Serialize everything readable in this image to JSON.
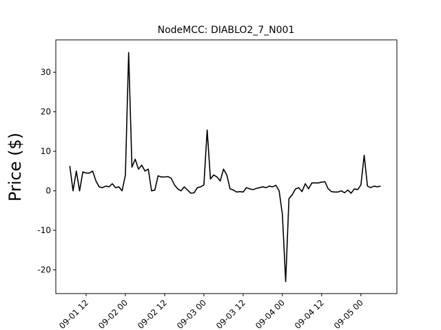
{
  "chart_data": {
    "type": "line",
    "title": "NodeMCC: DIABLO2_7_N001",
    "y_label": "Price ($)",
    "x": [
      "09-01 07:00",
      "09-01 08:00",
      "09-01 09:00",
      "09-01 10:00",
      "09-01 11:00",
      "09-01 12:00",
      "09-01 13:00",
      "09-01 14:00",
      "09-01 15:00",
      "09-01 16:00",
      "09-01 17:00",
      "09-01 18:00",
      "09-01 19:00",
      "09-01 20:00",
      "09-01 21:00",
      "09-01 22:00",
      "09-01 23:00",
      "09-02 00:00",
      "09-02 01:00",
      "09-02 02:00",
      "09-02 03:00",
      "09-02 04:00",
      "09-02 05:00",
      "09-02 06:00",
      "09-02 07:00",
      "09-02 08:00",
      "09-02 09:00",
      "09-02 10:00",
      "09-02 11:00",
      "09-02 12:00",
      "09-02 13:00",
      "09-02 14:00",
      "09-02 15:00",
      "09-02 16:00",
      "09-02 17:00",
      "09-02 18:00",
      "09-02 19:00",
      "09-02 20:00",
      "09-02 21:00",
      "09-02 22:00",
      "09-02 23:00",
      "09-03 00:00",
      "09-03 01:00",
      "09-03 02:00",
      "09-03 03:00",
      "09-03 04:00",
      "09-03 05:00",
      "09-03 06:00",
      "09-03 07:00",
      "09-03 08:00",
      "09-03 09:00",
      "09-03 10:00",
      "09-03 11:00",
      "09-03 12:00",
      "09-03 13:00",
      "09-03 14:00",
      "09-03 15:00",
      "09-03 16:00",
      "09-03 17:00",
      "09-03 18:00",
      "09-03 19:00",
      "09-03 20:00",
      "09-03 21:00",
      "09-03 22:00",
      "09-03 23:00",
      "09-04 00:00",
      "09-04 01:00",
      "09-04 02:00",
      "09-04 03:00",
      "09-04 04:00",
      "09-04 05:00",
      "09-04 06:00",
      "09-04 07:00",
      "09-04 08:00",
      "09-04 09:00",
      "09-04 10:00",
      "09-04 11:00",
      "09-04 12:00",
      "09-04 13:00",
      "09-04 14:00",
      "09-04 15:00",
      "09-04 16:00",
      "09-04 17:00",
      "09-04 18:00",
      "09-04 19:00",
      "09-04 20:00",
      "09-04 21:00",
      "09-04 22:00",
      "09-04 23:00",
      "09-05 00:00",
      "09-05 01:00",
      "09-05 02:00",
      "09-05 03:00",
      "09-05 04:00",
      "09-05 05:00",
      "09-05 06:00"
    ],
    "series": [
      {
        "color": "#000000",
        "values": [
          6.3,
          0,
          5,
          0,
          4.8,
          4.5,
          4.5,
          5.0,
          2.5,
          1,
          0.8,
          1.2,
          1.0,
          1.8,
          0.8,
          1.0,
          0,
          4,
          35,
          6,
          8,
          5.5,
          6.5,
          5,
          5.5,
          0,
          0.2,
          3.8,
          3.5,
          3.5,
          3.6,
          3.2,
          1.5,
          0.5,
          0,
          1,
          0.2,
          -0.6,
          -0.5,
          0.8,
          1,
          1.5,
          15.4,
          3,
          4,
          3.5,
          2.5,
          5.5,
          4,
          0.5,
          0.2,
          -0.3,
          -0.2,
          -0.3,
          0.8,
          0.5,
          0.3,
          0.6,
          0.8,
          1,
          0.8,
          1.2,
          1.0,
          1.4,
          0,
          -6,
          -23,
          -2,
          -1,
          0.5,
          0.8,
          -0.2,
          1.8,
          0.5,
          2,
          2,
          2,
          2.2,
          2.3,
          0.5,
          -0.2,
          -0.3,
          -0.3,
          0,
          -0.5,
          0.2,
          -0.6,
          0.5,
          0.3,
          1.5,
          9,
          1.2,
          0.8,
          1.2,
          1.0,
          1.2
        ]
      }
    ],
    "xlim": [
      "09-01 02:44",
      "09-05 11:00"
    ],
    "xticks": [
      {
        "value": "09-01 12:00",
        "label": "09-01 12"
      },
      {
        "value": "09-02 00:00",
        "label": "09-02 00"
      },
      {
        "value": "09-02 12:00",
        "label": "09-02 12"
      },
      {
        "value": "09-03 00:00",
        "label": "09-03 00"
      },
      {
        "value": "09-03 12:00",
        "label": "09-03 12"
      },
      {
        "value": "09-04 00:00",
        "label": "09-04 00"
      },
      {
        "value": "09-04 12:00",
        "label": "09-04 12"
      },
      {
        "value": "09-05 00:00",
        "label": "09-05 00"
      }
    ],
    "ylim": [
      -26,
      38.2
    ],
    "yticks": [
      -20,
      -10,
      0,
      10,
      20,
      30
    ]
  }
}
